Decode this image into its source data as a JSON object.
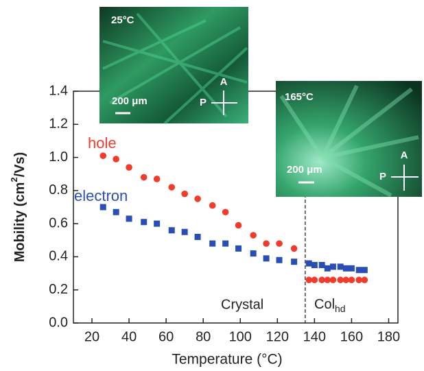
{
  "chart_data": {
    "type": "scatter",
    "x_label": "Temperature (°C)",
    "y_label": {
      "prefix": "Mobility (cm",
      "sup": "2",
      "suffix": "/Vs)"
    },
    "xlim": [
      10,
      185
    ],
    "xticks": [
      20,
      40,
      60,
      80,
      100,
      120,
      140,
      160,
      180
    ],
    "ylim": [
      0,
      1.4
    ],
    "yticks": [
      {
        "value": 0,
        "label": "0.0"
      },
      0.2,
      0.4,
      0.6,
      0.8,
      {
        "value": 1,
        "label": "1.0"
      },
      1.2,
      1.4
    ],
    "series": [
      {
        "name": "hole",
        "color": "#f03c2c",
        "marker": "circle",
        "x": [
          26,
          33,
          40,
          48,
          55,
          63,
          70,
          77,
          85,
          92,
          99,
          107,
          114,
          121,
          129,
          137,
          140,
          144,
          147,
          150,
          154,
          157,
          160,
          164,
          167
        ],
        "values": [
          1.01,
          0.99,
          0.94,
          0.88,
          0.87,
          0.82,
          0.78,
          0.75,
          0.71,
          0.67,
          0.59,
          0.53,
          0.48,
          0.48,
          0.45,
          0.26,
          0.26,
          0.26,
          0.26,
          0.26,
          0.26,
          0.26,
          0.26,
          0.26,
          0.26
        ]
      },
      {
        "name": "electron",
        "color": "#2a4fb4",
        "marker": "square",
        "x": [
          26,
          33,
          40,
          48,
          55,
          63,
          70,
          77,
          85,
          92,
          99,
          107,
          114,
          121,
          129,
          137,
          140,
          144,
          147,
          150,
          154,
          157,
          160,
          164,
          167
        ],
        "values": [
          0.7,
          0.67,
          0.63,
          0.61,
          0.6,
          0.56,
          0.55,
          0.52,
          0.48,
          0.48,
          0.45,
          0.42,
          0.39,
          0.38,
          0.37,
          0.36,
          0.35,
          0.35,
          0.33,
          0.34,
          0.34,
          0.33,
          0.33,
          0.32,
          0.32
        ]
      }
    ],
    "phase_boundary": 135,
    "annotations": [
      {
        "text": "Crystal"
      },
      {
        "text": "Col",
        "sub": "hd"
      }
    ]
  },
  "insets": [
    {
      "temperature": "25°C",
      "scale_bar": "200 μm",
      "analyzer": "A",
      "polarizer": "P"
    },
    {
      "temperature": "165°C",
      "scale_bar": "200 μm",
      "analyzer": "A",
      "polarizer": "P"
    }
  ]
}
